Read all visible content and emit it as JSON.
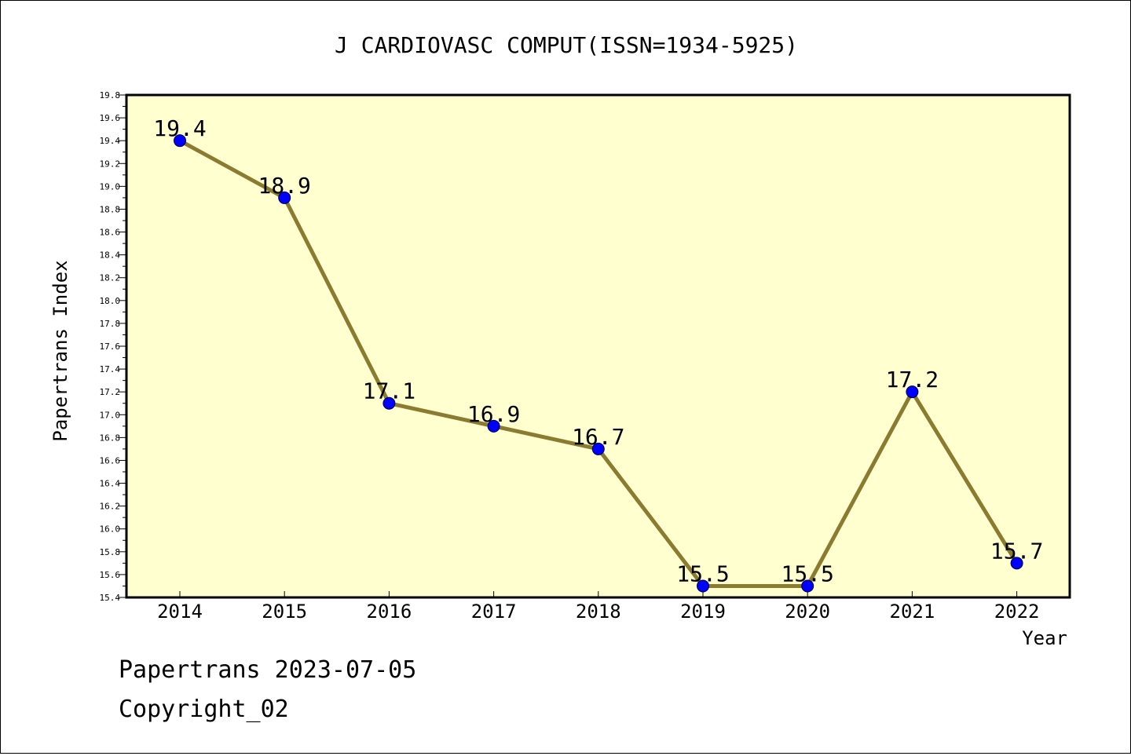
{
  "chart_data": {
    "type": "line",
    "title": "J CARDIOVASC COMPUT(ISSN=1934-5925)",
    "xlabel": "Year",
    "ylabel": "Papertrans Index",
    "categories": [
      "2014",
      "2015",
      "2016",
      "2017",
      "2018",
      "2019",
      "2020",
      "2021",
      "2022"
    ],
    "series": [
      {
        "values": [
          19.4,
          18.9,
          17.1,
          16.9,
          16.7,
          15.5,
          15.5,
          17.2,
          15.7
        ],
        "labels": [
          "19.4",
          "18.9",
          "17.1",
          "16.9",
          "16.7",
          "15.5",
          "15.5",
          "17.2",
          "15.7"
        ]
      }
    ],
    "ylim": [
      15.4,
      19.8
    ],
    "y_ticks": [
      "15.4",
      "15.6",
      "15.8",
      "16.0",
      "16.2",
      "16.4",
      "16.6",
      "16.8",
      "17.0",
      "17.2",
      "17.4",
      "17.6",
      "17.8",
      "18.0",
      "18.2",
      "18.4",
      "18.6",
      "18.8",
      "19.0",
      "19.2",
      "19.4",
      "19.6",
      "19.8"
    ],
    "grid": false,
    "colors": {
      "plot_background": "#ffffd0",
      "line": "#8b7b30",
      "marker": "#0000ff"
    }
  },
  "footer": {
    "line1": "Papertrans 2023-07-05",
    "line2": "Copyright_02"
  }
}
